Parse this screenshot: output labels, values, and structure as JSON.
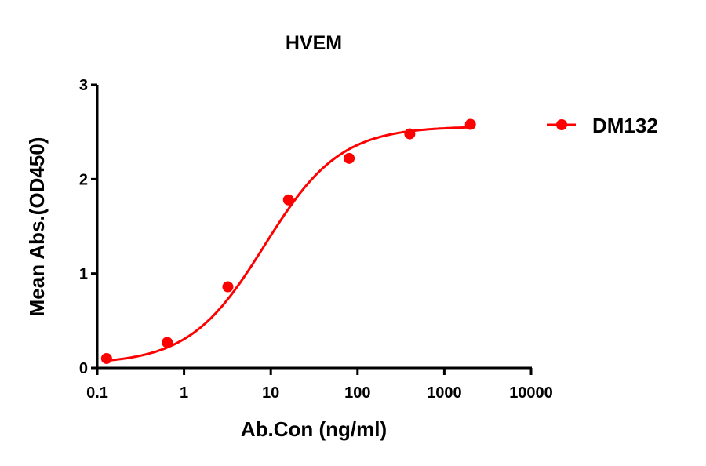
{
  "chart_data": {
    "type": "line",
    "title": "HVEM",
    "xlabel": "Ab.Con (ng/ml)",
    "ylabel": "Mean Abs.(OD450)",
    "xscale": "log",
    "xlim": [
      0.1,
      10000
    ],
    "ylim": [
      0,
      3
    ],
    "xticks": [
      "0.1",
      "1",
      "10",
      "100",
      "1000",
      "10000"
    ],
    "yticks": [
      "0",
      "1",
      "2",
      "3"
    ],
    "grid": false,
    "legend_position": "right",
    "series": [
      {
        "name": "DM132",
        "color": "#ff0000",
        "marker": "circle",
        "fit": "4-parameter logistic",
        "x": [
          0.128,
          0.64,
          3.2,
          16,
          80,
          400,
          2000
        ],
        "y": [
          0.1,
          0.27,
          0.86,
          1.78,
          2.22,
          2.48,
          2.58
        ]
      }
    ]
  },
  "legend": {
    "label": "DM132"
  }
}
